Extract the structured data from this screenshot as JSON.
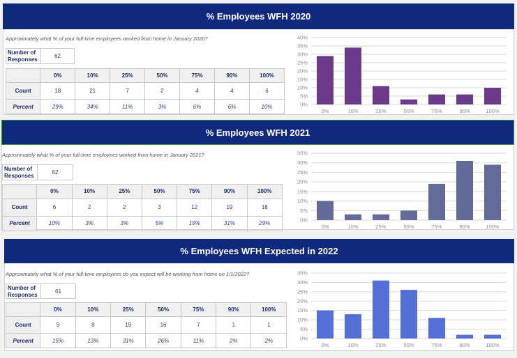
{
  "categories": [
    "0%",
    "10%",
    "25%",
    "50%",
    "75%",
    "90%",
    "100%"
  ],
  "row_labels": {
    "count": "Count",
    "percent": "Percent",
    "responses": "Number of Responses"
  },
  "panels": [
    {
      "title": "% Employees WFH 2020",
      "question": "Approximately what % of your full-time employees worked from home in January 2020?",
      "responses": "62",
      "counts": [
        "18",
        "21",
        "7",
        "2",
        "4",
        "4",
        "6"
      ],
      "percents": [
        "29%",
        "34%",
        "11%",
        "3%",
        "6%",
        "6%",
        "10%"
      ]
    },
    {
      "title": "% Employees WFH 2021",
      "question": "Approximately what % of your full-time employees worked from home in January 2021?",
      "responses": "62",
      "counts": [
        "6",
        "2",
        "2",
        "3",
        "12",
        "19",
        "18"
      ],
      "percents": [
        "10%",
        "3%",
        "3%",
        "5%",
        "19%",
        "31%",
        "29%"
      ]
    },
    {
      "title": "% Employees WFH Expected in 2022",
      "question": "Approximately what % of your full-time employees do you expect will be working from home on 1/1/2022?",
      "responses": "61",
      "counts": [
        "9",
        "8",
        "19",
        "16",
        "7",
        "1",
        "1"
      ],
      "percents": [
        "15%",
        "13%",
        "31%",
        "26%",
        "11%",
        "2%",
        "2%"
      ]
    }
  ],
  "chart_data": [
    {
      "type": "bar",
      "categories": [
        "0%",
        "10%",
        "25%",
        "50%",
        "75%",
        "90%",
        "100%"
      ],
      "values": [
        29,
        34,
        11,
        3,
        6,
        6,
        10
      ],
      "ylim": [
        0,
        40
      ],
      "yticks": [
        "0%",
        "5%",
        "10%",
        "15%",
        "20%",
        "25%",
        "30%",
        "35%",
        "40%"
      ],
      "grid": true,
      "color": "#6b3a8a"
    },
    {
      "type": "bar",
      "categories": [
        "0%",
        "10%",
        "25%",
        "50%",
        "75%",
        "90%",
        "100%"
      ],
      "values": [
        10,
        3,
        3,
        5,
        19,
        31,
        29
      ],
      "ylim": [
        0,
        35
      ],
      "yticks": [
        "0%",
        "5%",
        "10%",
        "15%",
        "20%",
        "25%",
        "30%",
        "35%"
      ],
      "grid": true,
      "color": "#636b98"
    },
    {
      "type": "bar",
      "categories": [
        "0%",
        "10%",
        "25%",
        "50%",
        "75%",
        "90%",
        "100%"
      ],
      "values": [
        15,
        13,
        31,
        26,
        11,
        2,
        2
      ],
      "ylim": [
        0,
        35
      ],
      "yticks": [
        "0%",
        "5%",
        "10%",
        "15%",
        "20%",
        "25%",
        "30%",
        "35%"
      ],
      "grid": true,
      "color": "#5470d6"
    }
  ]
}
